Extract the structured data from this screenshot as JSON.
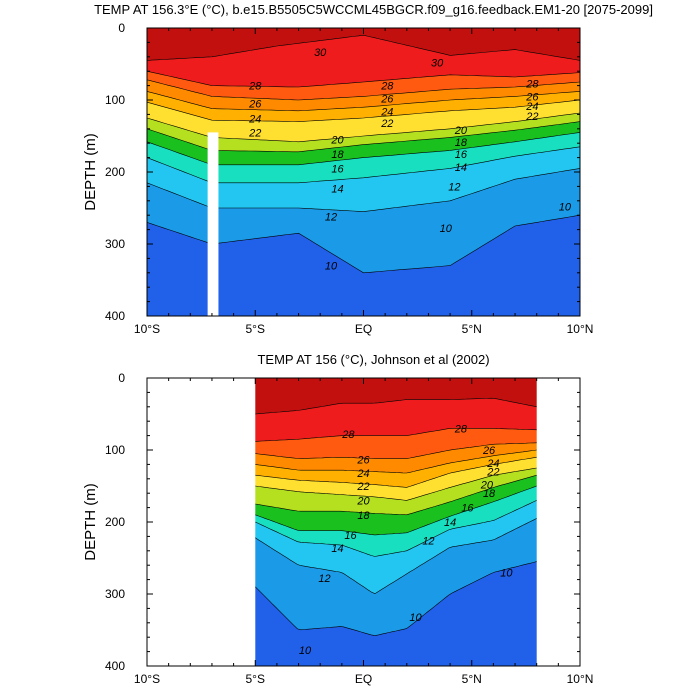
{
  "chart_data": [
    {
      "type": "contour",
      "title": "TEMP AT 156.3°E (°C), b.e15.B5505C5WCCML45BGCR.f09_g16.feedback.EM1-20 [2075-2099]",
      "xlabel": "",
      "ylabel": "DEPTH (m)",
      "xlim": [
        -10,
        10
      ],
      "ylim": [
        400,
        0
      ],
      "data_xlim": [
        -10,
        10
      ],
      "x_ticks": [
        -10,
        -5,
        0,
        5,
        10
      ],
      "x_tick_labels": [
        "10°S",
        "5°S",
        "EQ",
        "5°N",
        "10°N"
      ],
      "y_ticks": [
        0,
        100,
        200,
        300,
        400
      ],
      "y_tick_labels": [
        "0",
        "100",
        "200",
        "300",
        "400"
      ],
      "gap": {
        "x_range": [
          -7.2,
          -6.7
        ],
        "depth_range": [
          145,
          400
        ]
      },
      "isotherms": [
        {
          "level": 30,
          "depths": [
            [
              -10,
              45
            ],
            [
              -7,
              40
            ],
            [
              -4,
              25
            ],
            [
              0,
              10
            ],
            [
              4,
              38
            ],
            [
              7,
              30
            ],
            [
              10,
              45
            ]
          ]
        },
        {
          "level": 28,
          "depths": [
            [
              -10,
              60
            ],
            [
              -7,
              80
            ],
            [
              -3,
              82
            ],
            [
              0,
              75
            ],
            [
              4,
              65
            ],
            [
              7,
              68
            ],
            [
              10,
              62
            ]
          ]
        },
        {
          "level": 26,
          "depths": [
            [
              -10,
              72
            ],
            [
              -7,
              95
            ],
            [
              -3,
              100
            ],
            [
              0,
              95
            ],
            [
              4,
              85
            ],
            [
              7,
              82
            ],
            [
              10,
              75
            ]
          ]
        },
        {
          "level": 24,
          "depths": [
            [
              -10,
              88
            ],
            [
              -7,
              112
            ],
            [
              -3,
              115
            ],
            [
              0,
              110
            ],
            [
              4,
              100
            ],
            [
              7,
              95
            ],
            [
              10,
              88
            ]
          ]
        },
        {
          "level": 22,
          "depths": [
            [
              -10,
              103
            ],
            [
              -7,
              128
            ],
            [
              -3,
              130
            ],
            [
              0,
              125
            ],
            [
              4,
              115
            ],
            [
              7,
              110
            ],
            [
              10,
              100
            ]
          ]
        },
        {
          "level": 20,
          "depths": [
            [
              -10,
              125
            ],
            [
              -7,
              152
            ],
            [
              -3,
              158
            ],
            [
              0,
              150
            ],
            [
              4,
              140
            ],
            [
              7,
              130
            ],
            [
              10,
              118
            ]
          ]
        },
        {
          "level": 18,
          "depths": [
            [
              -10,
              140
            ],
            [
              -7,
              170
            ],
            [
              -3,
              172
            ],
            [
              0,
              162
            ],
            [
              4,
              152
            ],
            [
              7,
              142
            ],
            [
              10,
              130
            ]
          ]
        },
        {
          "level": 16,
          "depths": [
            [
              -10,
              158
            ],
            [
              -7,
              190
            ],
            [
              -3,
              190
            ],
            [
              0,
              180
            ],
            [
              4,
              170
            ],
            [
              7,
              158
            ],
            [
              10,
              145
            ]
          ]
        },
        {
          "level": 14,
          "depths": [
            [
              -10,
              180
            ],
            [
              -7,
              215
            ],
            [
              -3,
              215
            ],
            [
              0,
              208
            ],
            [
              4,
              195
            ],
            [
              7,
              178
            ],
            [
              10,
              165
            ]
          ]
        },
        {
          "level": 12,
          "depths": [
            [
              -10,
              215
            ],
            [
              -7,
              250
            ],
            [
              -3,
              250
            ],
            [
              0,
              255
            ],
            [
              4,
              240
            ],
            [
              7,
              210
            ],
            [
              10,
              195
            ]
          ]
        },
        {
          "level": 10,
          "depths": [
            [
              -10,
              270
            ],
            [
              -7,
              300
            ],
            [
              -3,
              285
            ],
            [
              0,
              340
            ],
            [
              4,
              330
            ],
            [
              7,
              275
            ],
            [
              10,
              260
            ]
          ]
        }
      ],
      "contour_labels": [
        {
          "text": "30",
          "x": -2.0,
          "depth": 33
        },
        {
          "text": "30",
          "x": 3.4,
          "depth": 48
        },
        {
          "text": "28",
          "x": -5.0,
          "depth": 80
        },
        {
          "text": "28",
          "x": 1.1,
          "depth": 80
        },
        {
          "text": "28",
          "x": 7.8,
          "depth": 77
        },
        {
          "text": "26",
          "x": -5.0,
          "depth": 105
        },
        {
          "text": "26",
          "x": 1.1,
          "depth": 98
        },
        {
          "text": "26",
          "x": 7.8,
          "depth": 95
        },
        {
          "text": "24",
          "x": -5.0,
          "depth": 126
        },
        {
          "text": "24",
          "x": 1.1,
          "depth": 116
        },
        {
          "text": "24",
          "x": 7.8,
          "depth": 108
        },
        {
          "text": "22",
          "x": -5.0,
          "depth": 145
        },
        {
          "text": "22",
          "x": 1.1,
          "depth": 132
        },
        {
          "text": "22",
          "x": 7.8,
          "depth": 122
        },
        {
          "text": "20",
          "x": -1.2,
          "depth": 155
        },
        {
          "text": "20",
          "x": 4.5,
          "depth": 142
        },
        {
          "text": "18",
          "x": -1.2,
          "depth": 175
        },
        {
          "text": "18",
          "x": 4.5,
          "depth": 158
        },
        {
          "text": "16",
          "x": -1.2,
          "depth": 195
        },
        {
          "text": "16",
          "x": 4.5,
          "depth": 175
        },
        {
          "text": "14",
          "x": -1.2,
          "depth": 223
        },
        {
          "text": "14",
          "x": 4.5,
          "depth": 193
        },
        {
          "text": "12",
          "x": -1.5,
          "depth": 262
        },
        {
          "text": "12",
          "x": 4.2,
          "depth": 220
        },
        {
          "text": "10",
          "x": -1.5,
          "depth": 330
        },
        {
          "text": "10",
          "x": 3.8,
          "depth": 278
        },
        {
          "text": "10",
          "x": 9.3,
          "depth": 248
        }
      ]
    },
    {
      "type": "contour",
      "title": "TEMP AT 156 (°C), Johnson et al (2002)",
      "xlabel": "",
      "ylabel": "DEPTH (m)",
      "xlim": [
        -10,
        10
      ],
      "ylim": [
        400,
        0
      ],
      "data_xlim": [
        -5,
        8
      ],
      "x_ticks": [
        -10,
        -5,
        0,
        5,
        10
      ],
      "x_tick_labels": [
        "10°S",
        "5°S",
        "EQ",
        "5°N",
        "10°N"
      ],
      "y_ticks": [
        0,
        100,
        200,
        300,
        400
      ],
      "y_tick_labels": [
        "0",
        "100",
        "200",
        "300",
        "400"
      ],
      "isotherms": [
        {
          "level": 30,
          "depths": [
            [
              -5,
              50
            ],
            [
              -3,
              45
            ],
            [
              -1,
              35
            ],
            [
              0.5,
              35
            ],
            [
              2,
              30
            ],
            [
              4,
              30
            ],
            [
              6,
              28
            ],
            [
              8,
              40
            ]
          ]
        },
        {
          "level": 28,
          "depths": [
            [
              -5,
              88
            ],
            [
              -3,
              85
            ],
            [
              -1,
              80
            ],
            [
              0.5,
              80
            ],
            [
              2,
              80
            ],
            [
              4,
              70
            ],
            [
              6,
              70
            ],
            [
              8,
              72
            ]
          ]
        },
        {
          "level": 26,
          "depths": [
            [
              -5,
              105
            ],
            [
              -3,
              112
            ],
            [
              -1,
              110
            ],
            [
              0.5,
              112
            ],
            [
              2,
              112
            ],
            [
              4,
              100
            ],
            [
              6,
              92
            ],
            [
              8,
              90
            ]
          ]
        },
        {
          "level": 24,
          "depths": [
            [
              -5,
              120
            ],
            [
              -3,
              128
            ],
            [
              -1,
              128
            ],
            [
              0.5,
              130
            ],
            [
              2,
              132
            ],
            [
              4,
              118
            ],
            [
              6,
              108
            ],
            [
              8,
              100
            ]
          ]
        },
        {
          "level": 22,
          "depths": [
            [
              -5,
              135
            ],
            [
              -3,
              142
            ],
            [
              -1,
              145
            ],
            [
              0.5,
              148
            ],
            [
              2,
              152
            ],
            [
              4,
              132
            ],
            [
              6,
              120
            ],
            [
              8,
              110
            ]
          ]
        },
        {
          "level": 20,
          "depths": [
            [
              -5,
              150
            ],
            [
              -3,
              158
            ],
            [
              -1,
              162
            ],
            [
              0.5,
              165
            ],
            [
              2,
              170
            ],
            [
              4,
              152
            ],
            [
              6,
              135
            ],
            [
              8,
              125
            ]
          ]
        },
        {
          "level": 18,
          "depths": [
            [
              -5,
              175
            ],
            [
              -3,
              185
            ],
            [
              -1,
              185
            ],
            [
              0.5,
              188
            ],
            [
              2,
              190
            ],
            [
              4,
              172
            ],
            [
              6,
              152
            ],
            [
              8,
              135
            ]
          ]
        },
        {
          "level": 16,
          "depths": [
            [
              -5,
              190
            ],
            [
              -3,
              212
            ],
            [
              -1,
              212
            ],
            [
              0.5,
              218
            ],
            [
              2,
              215
            ],
            [
              4,
              192
            ],
            [
              6,
              172
            ],
            [
              8,
              150
            ]
          ]
        },
        {
          "level": 14,
          "depths": [
            [
              -5,
              200
            ],
            [
              -3,
              228
            ],
            [
              -1,
              232
            ],
            [
              0.5,
              248
            ],
            [
              2,
              240
            ],
            [
              4,
              210
            ],
            [
              6,
              198
            ],
            [
              8,
              170
            ]
          ]
        },
        {
          "level": 12,
          "depths": [
            [
              -5,
              222
            ],
            [
              -3,
              260
            ],
            [
              -1,
              270
            ],
            [
              0.5,
              300
            ],
            [
              2,
              272
            ],
            [
              4,
              235
            ],
            [
              6,
              225
            ],
            [
              8,
              195
            ]
          ]
        },
        {
          "level": 10,
          "depths": [
            [
              -5,
              290
            ],
            [
              -3,
              350
            ],
            [
              -1,
              345
            ],
            [
              0.5,
              358
            ],
            [
              2,
              348
            ],
            [
              4,
              300
            ],
            [
              6,
              270
            ],
            [
              8,
              255
            ]
          ]
        }
      ],
      "contour_labels": [
        {
          "text": "28",
          "x": -0.7,
          "depth": 78
        },
        {
          "text": "28",
          "x": 4.5,
          "depth": 70
        },
        {
          "text": "26",
          "x": 0.0,
          "depth": 113
        },
        {
          "text": "26",
          "x": 5.8,
          "depth": 100
        },
        {
          "text": "24",
          "x": 0.0,
          "depth": 132
        },
        {
          "text": "24",
          "x": 6.0,
          "depth": 118
        },
        {
          "text": "22",
          "x": 0.0,
          "depth": 150
        },
        {
          "text": "22",
          "x": 6.0,
          "depth": 130
        },
        {
          "text": "20",
          "x": 0.0,
          "depth": 170
        },
        {
          "text": "20",
          "x": 5.7,
          "depth": 148
        },
        {
          "text": "18",
          "x": 0.0,
          "depth": 190
        },
        {
          "text": "18",
          "x": 5.8,
          "depth": 160
        },
        {
          "text": "16",
          "x": -0.6,
          "depth": 218
        },
        {
          "text": "16",
          "x": 4.8,
          "depth": 180
        },
        {
          "text": "14",
          "x": -1.2,
          "depth": 236
        },
        {
          "text": "14",
          "x": 4.0,
          "depth": 200
        },
        {
          "text": "12",
          "x": 3.0,
          "depth": 226
        },
        {
          "text": "12",
          "x": -1.8,
          "depth": 278
        },
        {
          "text": "10",
          "x": 6.6,
          "depth": 270
        },
        {
          "text": "10",
          "x": 2.4,
          "depth": 332
        },
        {
          "text": "10",
          "x": -2.7,
          "depth": 378
        }
      ]
    }
  ]
}
